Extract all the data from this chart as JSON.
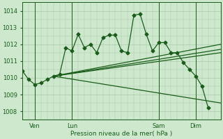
{
  "bg_color": "#cde8cd",
  "grid_color": "#aacaaa",
  "line_color": "#1a5c1a",
  "xlabel": "Pression niveau de la mer( hPa )",
  "ylim": [
    1007.5,
    1014.5
  ],
  "yticks": [
    1008,
    1009,
    1010,
    1011,
    1012,
    1013,
    1014
  ],
  "xtick_labels": [
    "Ven",
    "Lun",
    "Sam",
    "Dim"
  ],
  "xtick_positions": [
    2,
    8,
    22,
    28
  ],
  "vline_positions": [
    2,
    8,
    22,
    28
  ],
  "xlim": [
    0,
    32
  ],
  "series1_x": [
    0,
    1,
    2,
    3,
    4,
    5,
    6,
    7,
    8,
    9,
    10,
    11,
    12,
    13,
    14,
    15,
    16,
    17,
    18,
    19,
    20,
    21,
    22,
    23,
    24,
    25,
    26,
    27,
    28,
    29,
    30
  ],
  "series1_y": [
    1010.4,
    1009.9,
    1009.6,
    1009.7,
    1009.9,
    1010.1,
    1010.2,
    1011.8,
    1011.6,
    1012.6,
    1011.8,
    1012.0,
    1011.5,
    1012.4,
    1012.55,
    1012.55,
    1011.6,
    1011.5,
    1013.75,
    1013.8,
    1012.6,
    1011.6,
    1012.1,
    1012.1,
    1011.5,
    1011.5,
    1010.9,
    1010.5,
    1010.1,
    1009.5,
    1008.2
  ],
  "line2_x": [
    5,
    32
  ],
  "line2_y": [
    1010.1,
    1011.5
  ],
  "line3_x": [
    5,
    32
  ],
  "line3_y": [
    1010.1,
    1012.0
  ],
  "line4_x": [
    5,
    32
  ],
  "line4_y": [
    1010.1,
    1008.5
  ],
  "line5_x": [
    5,
    32
  ],
  "line5_y": [
    1010.1,
    1011.7
  ]
}
